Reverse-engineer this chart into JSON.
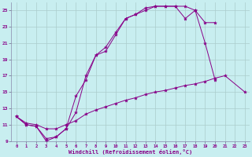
{
  "xlabel": "Windchill (Refroidissement éolien,°C)",
  "bg_color": "#c8eef0",
  "line_color": "#880088",
  "grid_color": "#aacccc",
  "xlim": [
    -0.5,
    23.5
  ],
  "ylim": [
    9,
    26
  ],
  "xticks": [
    0,
    1,
    2,
    3,
    4,
    5,
    6,
    7,
    8,
    9,
    10,
    11,
    12,
    13,
    14,
    15,
    16,
    17,
    18,
    19,
    20,
    21,
    22,
    23
  ],
  "yticks": [
    9,
    11,
    13,
    15,
    17,
    19,
    21,
    23,
    25
  ],
  "series": [
    {
      "x": [
        0,
        1,
        2,
        3,
        4,
        5,
        6,
        7,
        8,
        9,
        10,
        11,
        12,
        13,
        14,
        15,
        16,
        17,
        18,
        19,
        20,
        21,
        22,
        23
      ],
      "y": [
        12,
        11.2,
        11.0,
        10.5,
        10.5,
        11.0,
        11.5,
        12.3,
        12.8,
        13.2,
        13.6,
        14.0,
        14.3,
        14.7,
        15.0,
        15.2,
        15.5,
        15.8,
        16.0,
        16.3,
        16.7,
        17.0,
        null,
        15.0
      ]
    },
    {
      "x": [
        0,
        1,
        2,
        3,
        4,
        5,
        6,
        7,
        8,
        9,
        10,
        11,
        12,
        13,
        14,
        15,
        16,
        17,
        18,
        19,
        20,
        21,
        22
      ],
      "y": [
        12,
        11.0,
        10.8,
        9.3,
        9.5,
        10.5,
        12.5,
        17.0,
        19.5,
        20.0,
        22.0,
        24.0,
        24.5,
        25.0,
        25.5,
        25.5,
        25.5,
        25.5,
        25.0,
        21.0,
        16.5,
        null,
        null
      ]
    },
    {
      "x": [
        0,
        1,
        2,
        3,
        4,
        5,
        6,
        7,
        8,
        9,
        10,
        11,
        12,
        13,
        14,
        15,
        16,
        17,
        18,
        19,
        20
      ],
      "y": [
        12,
        11.0,
        10.8,
        9.0,
        9.5,
        10.5,
        14.5,
        16.5,
        19.5,
        20.5,
        22.3,
        24.0,
        24.5,
        25.3,
        25.5,
        25.5,
        25.5,
        24.0,
        25.0,
        23.5,
        23.5
      ]
    }
  ]
}
